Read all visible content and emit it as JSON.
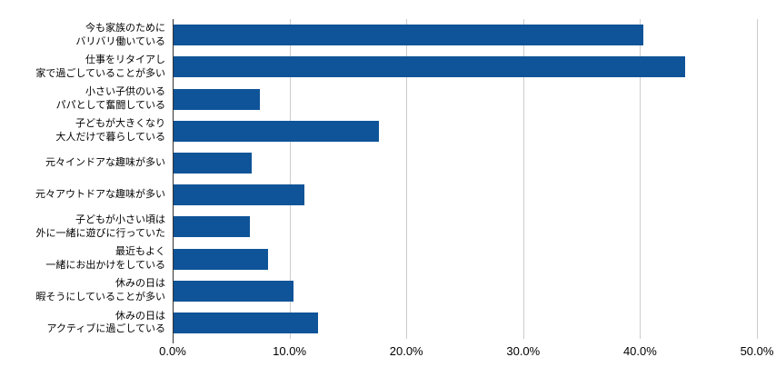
{
  "chart_data": {
    "type": "bar",
    "orientation": "horizontal",
    "title": "",
    "xlabel": "",
    "ylabel": "",
    "categories": [
      "今も家族のために\nバリバリ働いている",
      "仕事をリタイアし\n家で過ごしていることが多い",
      "小さい子供のいる\nパパとして奮闘している",
      "子どもが大きくなり\n大人だけで暮らしている",
      "元々インドアな趣味が多い",
      "元々アウトドアな趣味が多い",
      "子どもが小さい頃は\n外に一緒に遊びに行っていた",
      "最近もよく\n一緒にお出かけをしている",
      "休みの日は\n暇そうにしていることが多い",
      "休みの日は\nアクティブに過ごしている"
    ],
    "values": [
      40.2,
      43.8,
      7.4,
      17.6,
      6.7,
      11.2,
      6.5,
      8.1,
      10.3,
      12.4
    ],
    "value_unit": "%",
    "xlim": [
      0,
      50
    ],
    "x_ticks": [
      0,
      10,
      20,
      30,
      40,
      50
    ],
    "x_tick_labels": [
      "0.0%",
      "10.0%",
      "20.0%",
      "30.0%",
      "40.0%",
      "50.0%"
    ],
    "grid": true,
    "legend": "none",
    "bar_color": "#0f5498",
    "gridline_color": "#cccccc",
    "axis_line_color": "#333333",
    "text_color": "#000000",
    "background_color": "#ffffff"
  }
}
